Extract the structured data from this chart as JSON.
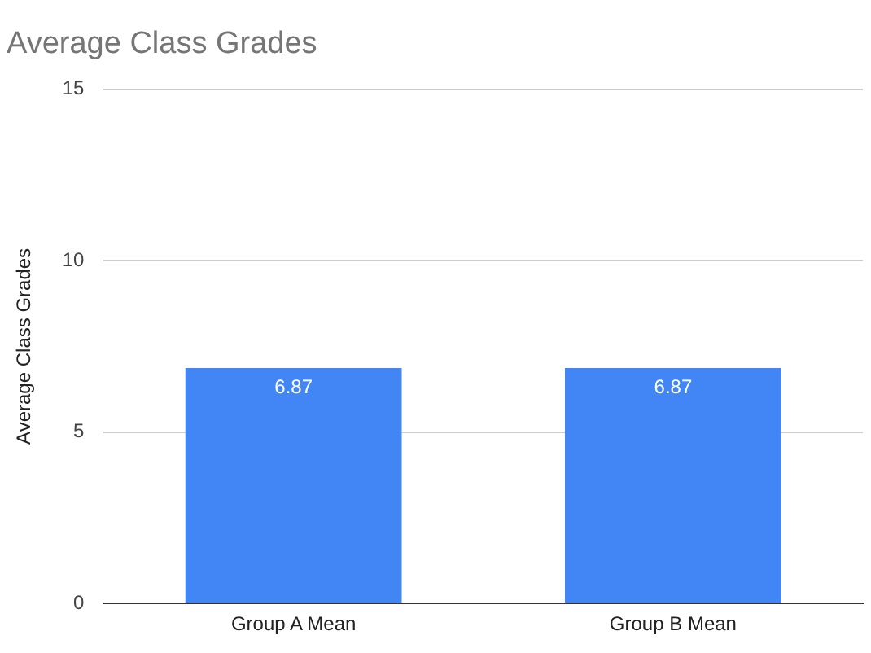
{
  "chart_data": {
    "type": "bar",
    "title": "Average Class Grades",
    "ylabel": "Average Class Grades",
    "categories": [
      "Group A Mean",
      "Group B Mean"
    ],
    "series": [
      {
        "color": "#4285f4",
        "values": [
          6.87,
          6.87
        ]
      }
    ],
    "ylim": [
      0,
      15
    ],
    "yticks": [
      0,
      5,
      10,
      15
    ],
    "grid": "y",
    "legend": false,
    "data_labels": true
  }
}
